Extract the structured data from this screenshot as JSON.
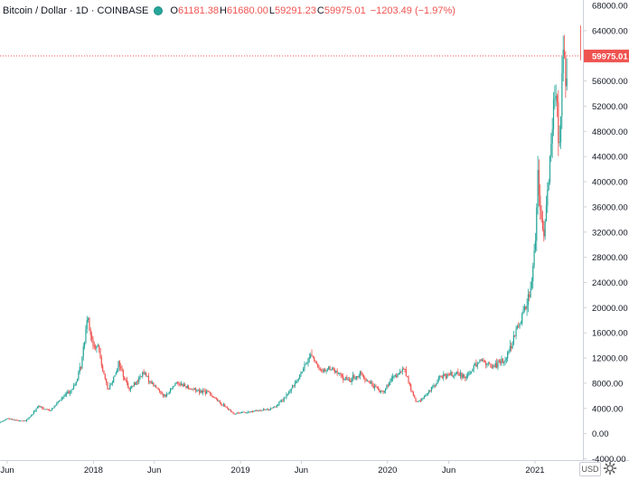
{
  "header": {
    "symbol": "Bitcoin / Dollar · 1D · COINBASE",
    "o_label": "O",
    "o": "61181.38",
    "h_label": "H",
    "h": "61680.00",
    "l_label": "L",
    "l": "59291.23",
    "c_label": "C",
    "c": "59975.01",
    "change": "−1203.49 (−1.97%)"
  },
  "colors": {
    "up": "#26a69a",
    "down": "#ef5350",
    "axis": "#cdd1d9",
    "text": "#131722"
  },
  "chart_data": {
    "type": "candlestick",
    "title": "Bitcoin / Dollar · 1D · COINBASE",
    "ylim": [
      -4000,
      68000
    ],
    "y_ticks": [
      "64000.00",
      "60000.00",
      "56000.00",
      "52000.00",
      "48000.00",
      "44000.00",
      "40000.00",
      "36000.00",
      "32000.00",
      "28000.00",
      "24000.00",
      "20000.00",
      "16000.00",
      "12000.00",
      "8000.00",
      "4000.00",
      "0.00",
      "-4000.00"
    ],
    "y_ticks_values": [
      64000,
      60000,
      56000,
      52000,
      48000,
      44000,
      40000,
      36000,
      32000,
      28000,
      24000,
      20000,
      16000,
      12000,
      8000,
      4000,
      0,
      -4000
    ],
    "y_top_partial_label": "68000.00",
    "x_ticks": [
      "Jun",
      "2018",
      "Jun",
      "2019",
      "Jun",
      "2020",
      "Jun",
      "2021"
    ],
    "x_ticks_dates": [
      "2017-06-01",
      "2018-01-01",
      "2018-06-01",
      "2019-01-01",
      "2019-06-01",
      "2020-01-01",
      "2020-06-01",
      "2021-01-01"
    ],
    "last_price": 59975.01,
    "last_price_label": "59975.01",
    "x_range": [
      "2017-04-20",
      "2021-04-25"
    ],
    "series_anchors": [
      {
        "date": "2017-04-20",
        "close": 1250
      },
      {
        "date": "2017-06-01",
        "close": 2400
      },
      {
        "date": "2017-07-15",
        "close": 1950
      },
      {
        "date": "2017-08-15",
        "close": 4300
      },
      {
        "date": "2017-09-15",
        "close": 3700
      },
      {
        "date": "2017-10-15",
        "close": 5700
      },
      {
        "date": "2017-11-15",
        "close": 7500
      },
      {
        "date": "2017-12-01",
        "close": 10800
      },
      {
        "date": "2017-12-17",
        "close": 19300
      },
      {
        "date": "2017-12-31",
        "close": 13800
      },
      {
        "date": "2018-01-15",
        "close": 13500
      },
      {
        "date": "2018-02-06",
        "close": 6900
      },
      {
        "date": "2018-03-05",
        "close": 11400
      },
      {
        "date": "2018-04-01",
        "close": 7000
      },
      {
        "date": "2018-05-05",
        "close": 9700
      },
      {
        "date": "2018-06-29",
        "close": 5900
      },
      {
        "date": "2018-07-25",
        "close": 8200
      },
      {
        "date": "2018-09-01",
        "close": 7100
      },
      {
        "date": "2018-10-15",
        "close": 6500
      },
      {
        "date": "2018-11-20",
        "close": 4500
      },
      {
        "date": "2018-12-15",
        "close": 3200
      },
      {
        "date": "2019-02-01",
        "close": 3500
      },
      {
        "date": "2019-03-15",
        "close": 3900
      },
      {
        "date": "2019-04-15",
        "close": 5200
      },
      {
        "date": "2019-05-15",
        "close": 8000
      },
      {
        "date": "2019-06-26",
        "close": 12900
      },
      {
        "date": "2019-07-15",
        "close": 10000
      },
      {
        "date": "2019-08-15",
        "close": 10300
      },
      {
        "date": "2019-09-25",
        "close": 8400
      },
      {
        "date": "2019-10-26",
        "close": 9400
      },
      {
        "date": "2019-12-17",
        "close": 6600
      },
      {
        "date": "2020-01-15",
        "close": 8800
      },
      {
        "date": "2020-02-13",
        "close": 10300
      },
      {
        "date": "2020-03-13",
        "close": 4900
      },
      {
        "date": "2020-04-15",
        "close": 6800
      },
      {
        "date": "2020-05-10",
        "close": 9000
      },
      {
        "date": "2020-06-15",
        "close": 9400
      },
      {
        "date": "2020-07-15",
        "close": 9200
      },
      {
        "date": "2020-08-15",
        "close": 11800
      },
      {
        "date": "2020-09-15",
        "close": 10700
      },
      {
        "date": "2020-10-15",
        "close": 11500
      },
      {
        "date": "2020-11-15",
        "close": 16000
      },
      {
        "date": "2020-12-01",
        "close": 19200
      },
      {
        "date": "2020-12-16",
        "close": 21300
      },
      {
        "date": "2020-12-31",
        "close": 29000
      },
      {
        "date": "2021-01-08",
        "close": 40000
      },
      {
        "date": "2021-01-22",
        "close": 30500
      },
      {
        "date": "2021-02-08",
        "close": 46000
      },
      {
        "date": "2021-02-21",
        "close": 57000
      },
      {
        "date": "2021-03-01",
        "close": 45000
      },
      {
        "date": "2021-03-13",
        "close": 61000
      },
      {
        "date": "2021-03-25",
        "close": 52000
      },
      {
        "date": "2021-04-13",
        "close": 63000
      },
      {
        "date": "2021-04-25",
        "close": 59975
      }
    ]
  },
  "ui": {
    "currency_button": "USD"
  }
}
